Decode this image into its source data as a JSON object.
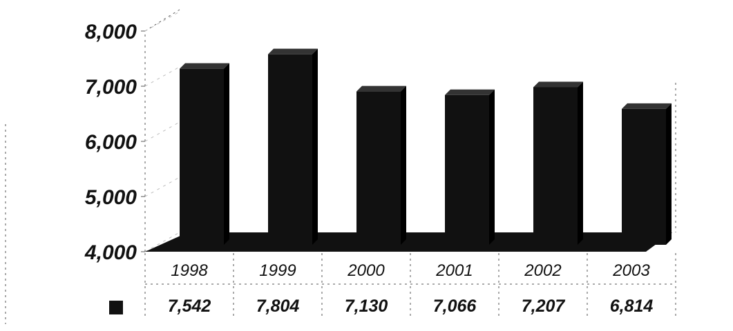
{
  "chart_data": {
    "type": "bar",
    "title": "",
    "xlabel": "",
    "ylabel": "",
    "categories": [
      "1998",
      "1999",
      "2000",
      "2001",
      "2002",
      "2003"
    ],
    "series": [
      {
        "values": [
          7542,
          7804,
          7130,
          7066,
          7207,
          6814
        ],
        "value_labels": [
          "7,542",
          "7,804",
          "7,130",
          "7,066",
          "7,207",
          "6,814"
        ]
      }
    ],
    "ylim": [
      4000,
      8000
    ],
    "yticks": [
      4000,
      5000,
      6000,
      7000,
      8000
    ],
    "ytick_labels": [
      "4,000",
      "5,000",
      "6,000",
      "7,000",
      "8,000"
    ],
    "grid": false,
    "style": "3d-column",
    "data_table": true,
    "colors": {
      "bar": "#111111",
      "floor": "#111111",
      "legend_key": "#111111"
    }
  }
}
